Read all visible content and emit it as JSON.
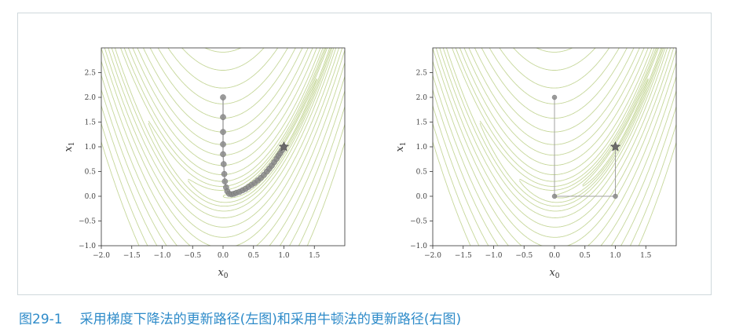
{
  "caption": {
    "figure_number": "图29-1",
    "text": "采用梯度下降法的更新路径(左图)和采用牛顿法的更新路径(右图)"
  },
  "colors": {
    "contour": "#c6d79a",
    "path_point": "#8a8a8a",
    "path_line": "#a0a0a0",
    "star": "#6a6a6a",
    "axis": "#333333",
    "caption": "#2e8bc9"
  },
  "chart_data": [
    {
      "type": "line",
      "title": "",
      "xlabel": "x0",
      "ylabel": "x1",
      "xlim": [
        -2.0,
        2.0
      ],
      "ylim": [
        -1.0,
        3.0
      ],
      "xticks": [
        "−2.0",
        "−1.5",
        "−1.0",
        "−0.5",
        "0.0",
        "0.5",
        "1.0",
        "1.5"
      ],
      "xtick_values": [
        -2.0,
        -1.5,
        -1.0,
        -0.5,
        0.0,
        0.5,
        1.0,
        1.5
      ],
      "yticks": [
        "−1.0",
        "−0.5",
        "0.0",
        "0.5",
        "1.0",
        "1.5",
        "2.0",
        "2.5"
      ],
      "ytick_values": [
        -1.0,
        -0.5,
        0.0,
        0.5,
        1.0,
        1.5,
        2.0,
        2.5
      ],
      "contours": "rosenbrock",
      "star": [
        1.0,
        1.0
      ],
      "series": [
        {
          "x": [
            0.0,
            0.0,
            0.0,
            0.0,
            0.0,
            0.01,
            0.02,
            0.03,
            0.05,
            0.07,
            0.1,
            0.14,
            0.18,
            0.22,
            0.27,
            0.32,
            0.37,
            0.42,
            0.47,
            0.52,
            0.57,
            0.62,
            0.67,
            0.72,
            0.76,
            0.8,
            0.84,
            0.88,
            0.91,
            0.94,
            0.97,
            1.0
          ],
          "y": [
            2.0,
            1.6,
            1.3,
            1.05,
            0.85,
            0.65,
            0.45,
            0.3,
            0.18,
            0.1,
            0.05,
            0.04,
            0.05,
            0.07,
            0.09,
            0.12,
            0.15,
            0.19,
            0.23,
            0.27,
            0.32,
            0.37,
            0.43,
            0.5,
            0.56,
            0.62,
            0.69,
            0.76,
            0.82,
            0.87,
            0.93,
            1.0
          ]
        }
      ]
    },
    {
      "type": "line",
      "title": "",
      "xlabel": "x0",
      "ylabel": "x1",
      "xlim": [
        -2.0,
        2.0
      ],
      "ylim": [
        -1.0,
        3.0
      ],
      "xticks": [
        "−2.0",
        "−1.5",
        "−1.0",
        "−0.5",
        "0.0",
        "0.5",
        "1.0",
        "1.5"
      ],
      "xtick_values": [
        -2.0,
        -1.5,
        -1.0,
        -0.5,
        0.0,
        0.5,
        1.0,
        1.5
      ],
      "yticks": [
        "−1.0",
        "−0.5",
        "0.0",
        "0.5",
        "1.0",
        "1.5",
        "2.0",
        "2.5"
      ],
      "ytick_values": [
        -1.0,
        -0.5,
        0.0,
        0.5,
        1.0,
        1.5,
        2.0,
        2.5
      ],
      "contours": "rosenbrock",
      "star": [
        1.0,
        1.0
      ],
      "series": [
        {
          "x": [
            0.0,
            0.0,
            1.0,
            1.0
          ],
          "y": [
            2.0,
            0.0,
            0.0,
            1.0
          ]
        }
      ]
    }
  ]
}
